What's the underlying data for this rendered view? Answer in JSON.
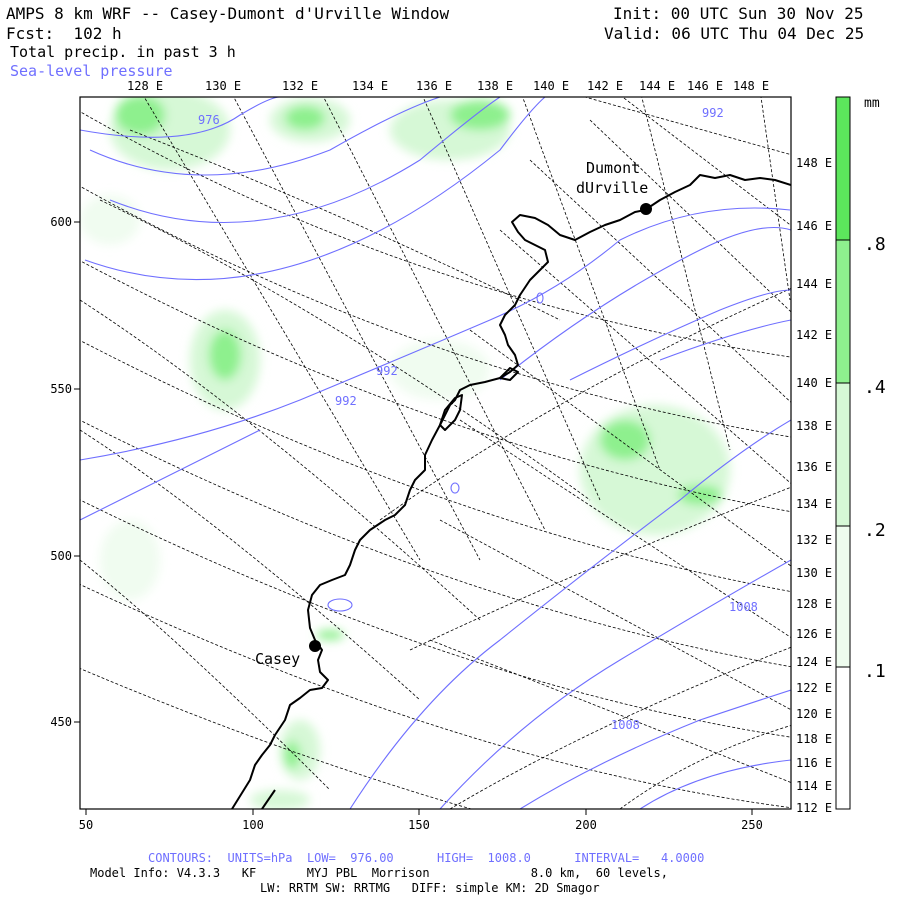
{
  "header": {
    "title_line1": "AMPS 8 km WRF -- Casey-Dumont d'Urville Window",
    "title_line2": "Fcst:  102 h",
    "init": "Init: 00 UTC Sun 30 Nov 25",
    "valid": "Valid: 06 UTC Thu 04 Dec 25",
    "field": "Total precip. in past 3 h",
    "overlay": "Sea-level pressure"
  },
  "top_longitudes": [
    "128 E",
    "130 E",
    "132 E",
    "134 E",
    "136 E",
    "138 E",
    "140 E",
    "142 E",
    "144 E",
    "146 E",
    "148 E"
  ],
  "right_longitudes": [
    "148 E",
    "146 E",
    "144 E",
    "142 E",
    "140 E",
    "138 E",
    "136 E",
    "134 E",
    "132 E",
    "130 E",
    "128 E",
    "126 E",
    "124 E",
    "122 E",
    "120 E",
    "118 E",
    "116 E",
    "114 E",
    "112 E"
  ],
  "x_ticks": [
    "50",
    "100",
    "150",
    "200",
    "250"
  ],
  "y_ticks": [
    "600",
    "550",
    "500",
    "450"
  ],
  "stations": {
    "dumont_line1": "Dumont",
    "dumont_line2": "dUrville",
    "casey": "Casey"
  },
  "contour_labels": [
    "976",
    "992",
    "992",
    "992",
    "1008",
    "1008"
  ],
  "colorbar": {
    "unit": "mm",
    "labels": [
      ".8",
      ".4",
      ".2",
      ".1"
    ],
    "colors": [
      "#5ce65c",
      "#8ef08e",
      "#d6f8d6",
      "#ffffff"
    ]
  },
  "footer": {
    "contours": "CONTOURS:  UNITS=hPa  LOW=  976.00      HIGH=  1008.0      INTERVAL=   4.0000",
    "model_info": "Model Info: V4.3.3   KF       MYJ PBL  Morrison              8.0 km,  60 levels,",
    "model_info2": "LW: RRTM SW: RRTMG   DIFF: simple KM: 2D Smagor"
  },
  "colors": {
    "contour": "#6f6fff",
    "coast": "#000000",
    "precip_light": "#d6f8d6",
    "precip_mid": "#8ef08e",
    "precip_heavy": "#5ce65c"
  }
}
